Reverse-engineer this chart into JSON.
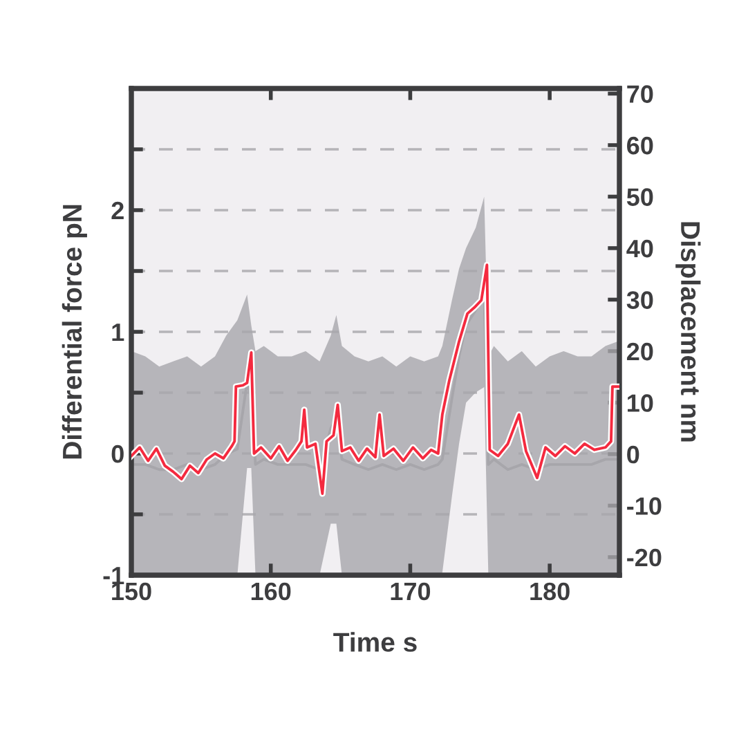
{
  "chart_data": {
    "type": "line",
    "xlabel": "Time s",
    "ylabel": "Differential force pN",
    "y2label": "Displacement nm",
    "xlim": [
      150,
      185
    ],
    "xticks": [
      150,
      160,
      170,
      180
    ],
    "ylim": [
      -1,
      3
    ],
    "yticks": [
      -1,
      {
        "value": -0.5,
        "label": null
      },
      0,
      {
        "value": 0.5,
        "label": null
      },
      1,
      {
        "value": 1.5,
        "label": null
      },
      2,
      {
        "value": 2.5,
        "label": null
      }
    ],
    "y2lim": [
      -23.5,
      71
    ],
    "y2ticks": [
      -20,
      -10,
      0,
      10,
      20,
      30,
      40,
      50,
      60,
      70
    ],
    "grid": "y",
    "line_style": "solid",
    "marker": "none",
    "series": [
      {
        "axis": "y2",
        "color": "#a7a6ab",
        "x": [
          150,
          151,
          152,
          153,
          154,
          155,
          156,
          156.8,
          157.6,
          158.3,
          158.6,
          158.9,
          159.5,
          160.5,
          161.5,
          162.5,
          163.5,
          164.3,
          164.7,
          165.1,
          166,
          167,
          168,
          169,
          170,
          171,
          172,
          172.3,
          173,
          173.5,
          174,
          174.7,
          175.3,
          175.6,
          176,
          177,
          178,
          179,
          180,
          181,
          182,
          183,
          184,
          185
        ],
        "values": [
          -2,
          -2,
          -3,
          -3,
          -2,
          -3,
          -2,
          0,
          1,
          14,
          11,
          -2,
          -1,
          -2,
          -2,
          -2,
          -3,
          5,
          7,
          -1,
          -2,
          -3,
          -2,
          -3,
          -2,
          -3,
          -2,
          -1,
          11,
          19,
          25,
          28,
          32,
          -2,
          -1,
          -3,
          -2,
          -3,
          -2,
          -2,
          -2,
          -2,
          -1,
          -1
        ],
        "upper": [
          20,
          19,
          17,
          18,
          19,
          17,
          19,
          23,
          26,
          31,
          25,
          20,
          21,
          19,
          19,
          20,
          18,
          23,
          27,
          21,
          19,
          18,
          19,
          17,
          19,
          18,
          19,
          21,
          30,
          36,
          40,
          44,
          50,
          19,
          21,
          18,
          20,
          17,
          19,
          20,
          19,
          19,
          21,
          22
        ],
        "lower": [
          -23.5,
          -23.5,
          -23.5,
          -23.5,
          -23.5,
          -23.5,
          -23.5,
          -23.5,
          -23.5,
          -2.7,
          -2.7,
          -23.5,
          -23.5,
          -23.5,
          -23.5,
          -23.5,
          -23.5,
          -13.5,
          -13.5,
          -23.5,
          -23.5,
          -23.5,
          -23.5,
          -23.5,
          -23.5,
          -23.5,
          -23.5,
          -23,
          -8,
          2,
          10,
          12,
          13,
          -23.5,
          -23.5,
          -23.5,
          -23.5,
          -23.5,
          -23.5,
          -23.5,
          -23.5,
          -23.5,
          -23.5,
          -23.5
        ]
      },
      {
        "color": "#f42a3f",
        "x": [
          150,
          150.6,
          151.2,
          151.8,
          152.4,
          153,
          153.6,
          154.2,
          154.8,
          155.4,
          156,
          156.6,
          157.2,
          157.4,
          157.5,
          158,
          158.3,
          158.6,
          158.8,
          159.3,
          160,
          160.6,
          161.2,
          161.8,
          162.2,
          162.4,
          162.6,
          163.2,
          163.7,
          164,
          164.5,
          164.8,
          165.1,
          165.7,
          166.3,
          166.9,
          167.5,
          167.8,
          168.1,
          168.8,
          169.5,
          170.2,
          170.9,
          171.5,
          172,
          172.3,
          172.8,
          173.5,
          174.1,
          174.6,
          175.1,
          175.5,
          175.7,
          176.3,
          177,
          177.8,
          178.3,
          179.1,
          179.7,
          180.4,
          181.1,
          181.8,
          182.5,
          183.2,
          184,
          184.4,
          184.5,
          185
        ],
        "values": [
          -0.02,
          0.05,
          -0.06,
          0.04,
          -0.1,
          -0.15,
          -0.21,
          -0.1,
          -0.16,
          -0.05,
          0,
          -0.04,
          0.06,
          0.1,
          0.55,
          0.56,
          0.58,
          0.83,
          0,
          0.05,
          -0.04,
          0.06,
          -0.06,
          0.03,
          0.1,
          0.36,
          0.05,
          0.08,
          -0.33,
          0.1,
          0.15,
          0.4,
          0.02,
          0.05,
          -0.06,
          0.04,
          -0.03,
          0.32,
          -0.02,
          0.04,
          -0.06,
          0.05,
          -0.04,
          0.03,
          0,
          0.32,
          0.6,
          0.92,
          1.15,
          1.2,
          1.26,
          1.55,
          0.03,
          -0.02,
          0.08,
          0.32,
          0.02,
          -0.2,
          0.05,
          -0.02,
          0.06,
          0,
          0.08,
          0.03,
          0.05,
          0.1,
          0.55,
          0.55
        ]
      }
    ]
  }
}
